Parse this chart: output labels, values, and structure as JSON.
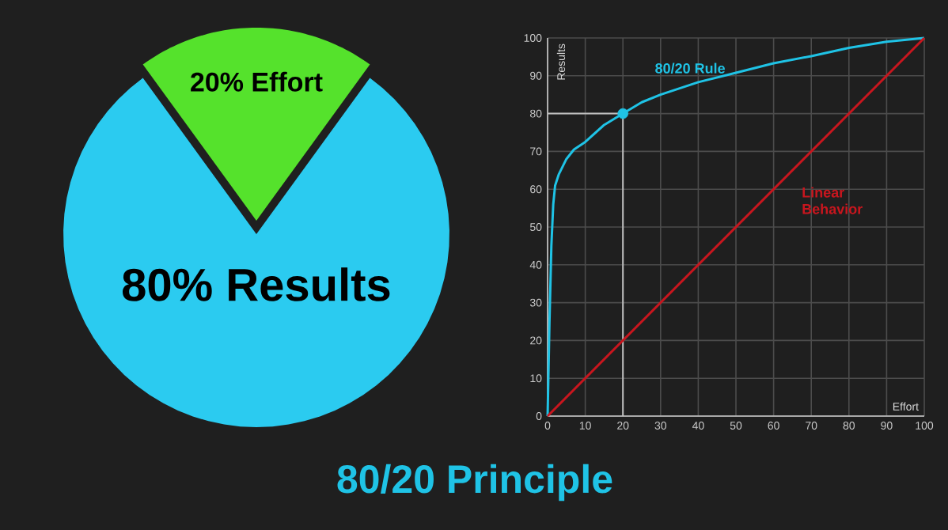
{
  "chart_data": [
    {
      "type": "pie",
      "title": "80/20 Principle",
      "categories": [
        "20% Effort",
        "80% Results"
      ],
      "values": [
        20,
        80
      ],
      "colors": [
        "#55e22c",
        "#2bcbf0"
      ]
    },
    {
      "type": "line",
      "xlabel": "Effort",
      "ylabel": "Results",
      "xlim": [
        0,
        100
      ],
      "ylim": [
        0,
        100
      ],
      "xticks": [
        0,
        10,
        20,
        30,
        40,
        50,
        60,
        70,
        80,
        90,
        100
      ],
      "yticks": [
        0,
        10,
        20,
        30,
        40,
        50,
        60,
        70,
        80,
        90,
        100
      ],
      "grid": true,
      "series": [
        {
          "name": "80/20 Rule",
          "color": "#1fc3e6",
          "x": [
            0,
            0.5,
            1,
            1.5,
            2,
            3,
            5,
            7,
            10,
            15,
            20,
            25,
            30,
            40,
            50,
            60,
            70,
            80,
            90,
            100
          ],
          "values": [
            0,
            25,
            45,
            56,
            61,
            64,
            68,
            70.5,
            72.5,
            77,
            80,
            83,
            85,
            88.3,
            90.8,
            93.3,
            95.2,
            97.4,
            99,
            100
          ]
        },
        {
          "name": "Linear Behavior",
          "color": "#c8161e",
          "x": [
            0,
            100
          ],
          "values": [
            0,
            100
          ]
        },
        {
          "type": "scatter",
          "marker": "circle",
          "color": "#1fc3e6",
          "x": [
            20
          ],
          "values": [
            80
          ]
        }
      ],
      "ref_lines": [
        {
          "axis": "y",
          "value": 80,
          "color": "#bfbfbf"
        },
        {
          "axis": "x",
          "value": 20,
          "color": "#bfbfbf"
        }
      ]
    }
  ]
}
